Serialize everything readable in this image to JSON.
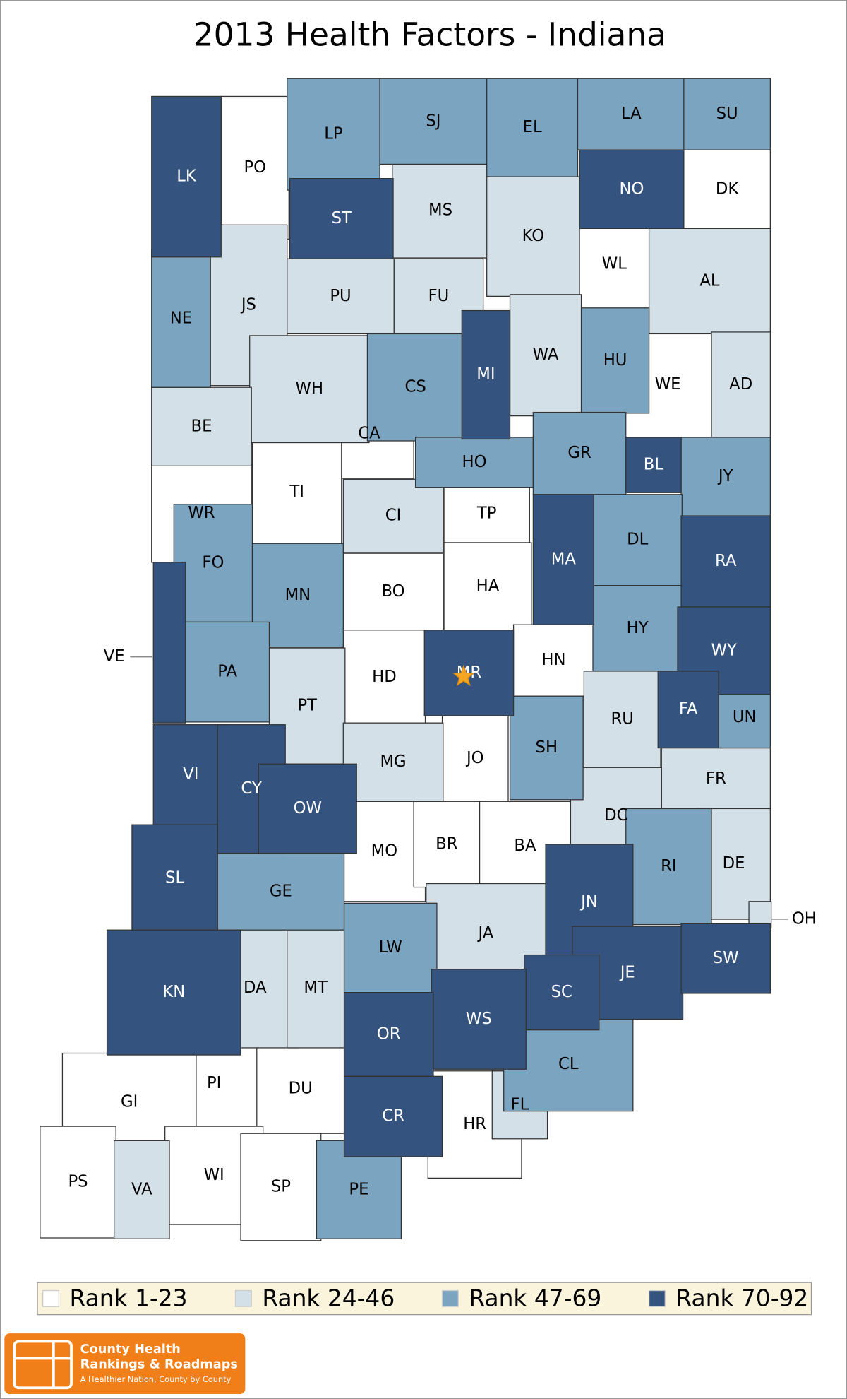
{
  "title": "2013 Health Factors - Indiana",
  "legend": [
    {
      "label": "Rank 1-23",
      "color": "#ffffff",
      "counties": [
        "PO",
        "DK",
        "WL",
        "WE",
        "CA",
        "TI",
        "WR",
        "TP",
        "BO",
        "HA",
        "HD",
        "HN",
        "JO",
        "MO",
        "BR",
        "BA",
        "PI",
        "DU",
        "GI",
        "PS",
        "WI",
        "SP",
        "HR"
      ]
    },
    {
      "label": "Rank 24-46",
      "color": "#d3e0e8",
      "counties": [
        "MS",
        "KO",
        "AL",
        "JS",
        "PU",
        "FU",
        "WA",
        "AD",
        "WH",
        "BE",
        "CI",
        "PT",
        "MG",
        "RU",
        "FR",
        "DC",
        "DE",
        "JA",
        "DA",
        "MT",
        "FL",
        "VA",
        "OH"
      ]
    },
    {
      "label": "Rank 47-69",
      "color": "#7ba4c0",
      "counties": [
        "LP",
        "SJ",
        "EL",
        "LA",
        "SU",
        "NE",
        "CS",
        "HU",
        "HO",
        "GR",
        "JY",
        "DL",
        "FO",
        "MN",
        "HY",
        "PA",
        "UN",
        "SH",
        "RI",
        "GE",
        "LW",
        "CL",
        "PE"
      ]
    },
    {
      "label": "Rank 70-92",
      "color": "#34547f",
      "counties": [
        "LK",
        "ST",
        "NO",
        "MI",
        "BL",
        "MA",
        "RA",
        "WY",
        "VE",
        "FA",
        "VI",
        "CY",
        "OW",
        "SL",
        "KN",
        "JN",
        "JE",
        "SW",
        "SC",
        "WS",
        "OR",
        "CR",
        "MR"
      ]
    }
  ],
  "logo": {
    "line1": "County Health",
    "line2": "Rankings & Roadmaps",
    "tagline": "A Healthier Nation, County by County"
  }
}
